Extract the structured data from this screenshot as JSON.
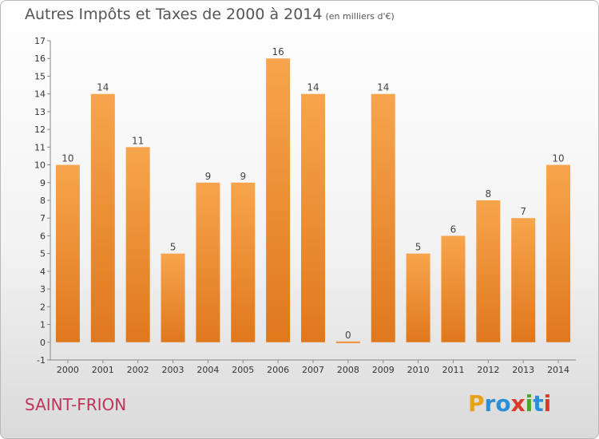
{
  "title": "Autres Impôts et Taxes de 2000 à 2014",
  "subtitle": "(en milliers d'€)",
  "location": "SAINT-FRION",
  "logo": [
    "P",
    "r",
    "o",
    "x",
    "i",
    "t",
    "i"
  ],
  "colors": {
    "bar_top": "#f7a54d",
    "bar_bottom": "#e0781c",
    "location": "#c0335c"
  },
  "chart_data": {
    "type": "bar",
    "categories": [
      "2000",
      "2001",
      "2002",
      "2003",
      "2004",
      "2005",
      "2006",
      "2007",
      "2008",
      "2009",
      "2010",
      "2011",
      "2012",
      "2013",
      "2014"
    ],
    "values": [
      10,
      14,
      11,
      5,
      9,
      9,
      16,
      14,
      0,
      14,
      5,
      6,
      8,
      7,
      10
    ],
    "title": "Autres Impôts et Taxes de 2000 à 2014",
    "ylim": [
      -1,
      17
    ],
    "yticks": [
      -1,
      0,
      1,
      2,
      3,
      4,
      5,
      6,
      7,
      8,
      9,
      10,
      11,
      12,
      13,
      14,
      15,
      16,
      17
    ],
    "grid": false
  }
}
